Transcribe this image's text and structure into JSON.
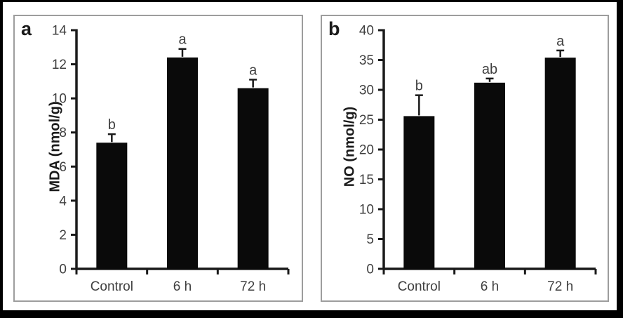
{
  "figure": {
    "background": "#ffffff",
    "outer_border_color": "#000000",
    "panel_border_color": "#9d9d9d",
    "bar_color": "#0a0a0a",
    "axis_color": "#1a1a1a",
    "text_color": "#3f3f3f"
  },
  "chart_data": [
    {
      "type": "bar",
      "panel_label": "a",
      "ylabel": "MDA (nmol/g)",
      "xlabel": "",
      "categories": [
        "Control",
        "6 h",
        "72 h"
      ],
      "values": [
        7.4,
        12.4,
        10.6
      ],
      "errors": [
        0.5,
        0.5,
        0.5
      ],
      "sig_letters": [
        "b",
        "a",
        "a"
      ],
      "ylim": [
        0,
        14
      ],
      "yticks": [
        0,
        2,
        4,
        6,
        8,
        10,
        12,
        14
      ],
      "grid": false,
      "legend_position": "none",
      "bar_color": "#0a0a0a"
    },
    {
      "type": "bar",
      "panel_label": "b",
      "ylabel": "NO (nmol/g)",
      "xlabel": "",
      "categories": [
        "Control",
        "6 h",
        "72 h"
      ],
      "values": [
        25.6,
        31.2,
        35.4
      ],
      "errors": [
        3.5,
        0.7,
        1.2
      ],
      "sig_letters": [
        "b",
        "ab",
        "a"
      ],
      "ylim": [
        0,
        40
      ],
      "yticks": [
        0,
        5,
        10,
        15,
        20,
        25,
        30,
        35,
        40
      ],
      "grid": false,
      "legend_position": "none",
      "bar_color": "#0a0a0a"
    }
  ]
}
